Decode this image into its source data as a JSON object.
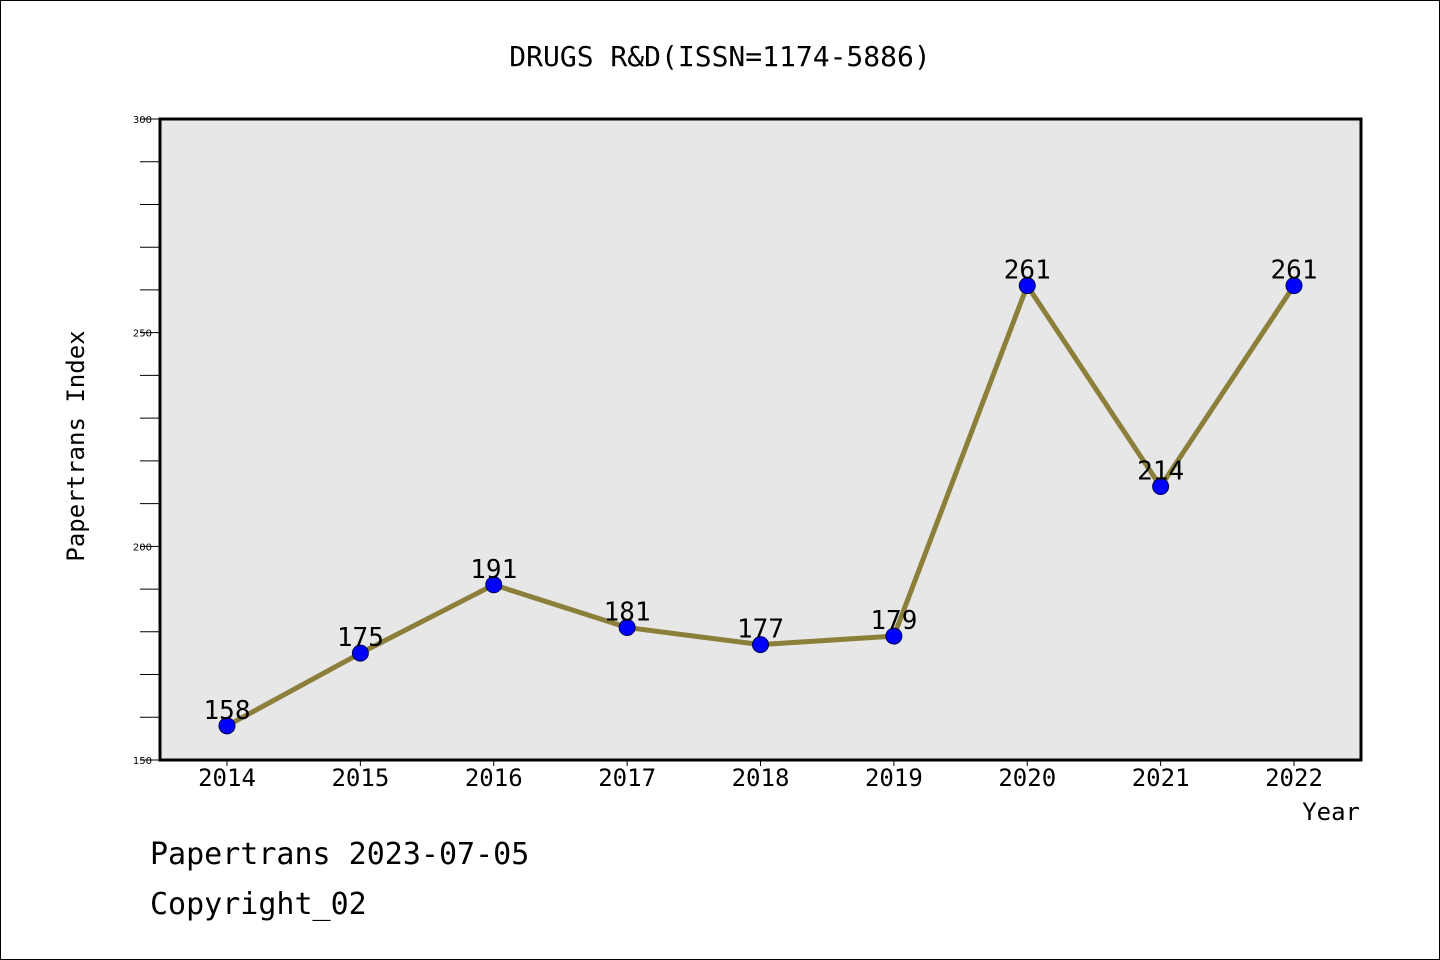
{
  "chart_data": {
    "type": "line",
    "title": "DRUGS R&D(ISSN=1174-5886)",
    "xlabel": "Year",
    "ylabel": "Papertrans Index",
    "categories": [
      "2014",
      "2015",
      "2016",
      "2017",
      "2018",
      "2019",
      "2020",
      "2021",
      "2022"
    ],
    "series": [
      {
        "values": [
          158,
          175,
          191,
          181,
          177,
          179,
          261,
          214,
          261
        ]
      }
    ],
    "data_labels": [
      "158",
      "175",
      "191",
      "181",
      "177",
      "179",
      "261",
      "214",
      "261"
    ],
    "ylim": [
      150,
      300
    ],
    "yticks": [
      150,
      200,
      250,
      300
    ],
    "y_minor_step": 10,
    "grid": false,
    "legend": "none",
    "colors": {
      "line": "#8B7F3A",
      "marker": "#0000FF",
      "plot_bg": "#E7E7E7",
      "frame": "#000000"
    }
  },
  "footer": {
    "line1": "Papertrans 2023-07-05",
    "line2": "Copyright_02"
  }
}
